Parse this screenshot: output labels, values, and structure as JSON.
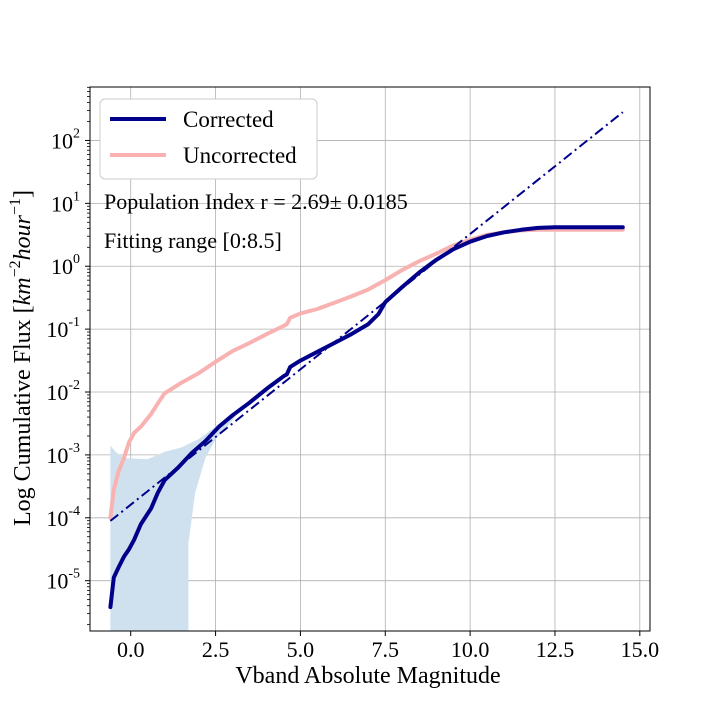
{
  "chart_data": {
    "type": "line",
    "xlabel": "Vband Absolute Magnitude",
    "ylabel": "Log Cumulative Flux [km^-2 hour^-1]",
    "ylabel_parts": {
      "prefix": "Log Cumulative Flux [",
      "km": "km",
      "exp1": "−2",
      "hour": "hour",
      "exp2": "−1",
      "suffix": "]"
    },
    "xlim": [
      -1.2,
      15.3
    ],
    "ylim_log10": [
      -5.8,
      2.85
    ],
    "y_scale": "log",
    "grid": true,
    "legend_position": "top-left",
    "x_ticks": [
      {
        "value": 0.0,
        "label": "0.0"
      },
      {
        "value": 2.5,
        "label": "2.5"
      },
      {
        "value": 5.0,
        "label": "5.0"
      },
      {
        "value": 7.5,
        "label": "7.5"
      },
      {
        "value": 10.0,
        "label": "10.0"
      },
      {
        "value": 12.5,
        "label": "12.5"
      },
      {
        "value": 15.0,
        "label": "15.0"
      }
    ],
    "y_ticks": [
      {
        "exp": -5,
        "base": "10",
        "sup": "-5"
      },
      {
        "exp": -4,
        "base": "10",
        "sup": "-4"
      },
      {
        "exp": -3,
        "base": "10",
        "sup": "-3"
      },
      {
        "exp": -2,
        "base": "10",
        "sup": "-2"
      },
      {
        "exp": -1,
        "base": "10",
        "sup": "-1"
      },
      {
        "exp": 0,
        "base": "10",
        "sup": "0"
      },
      {
        "exp": 1,
        "base": "10",
        "sup": "1"
      },
      {
        "exp": 2,
        "base": "10",
        "sup": "2"
      }
    ],
    "annotations": [
      "Population Index r = 2.69± 0.0185",
      "Fitting range [0:8.5]"
    ],
    "series": [
      {
        "name": "Corrected",
        "color": "#00008b",
        "style": "solid",
        "points": [
          [
            -0.6,
            -5.42
          ],
          [
            -0.5,
            -4.95
          ],
          [
            -0.35,
            -4.78
          ],
          [
            -0.2,
            -4.62
          ],
          [
            -0.05,
            -4.5
          ],
          [
            0.1,
            -4.35
          ],
          [
            0.3,
            -4.1
          ],
          [
            0.6,
            -3.85
          ],
          [
            0.8,
            -3.6
          ],
          [
            1.0,
            -3.4
          ],
          [
            1.4,
            -3.2
          ],
          [
            1.8,
            -2.97
          ],
          [
            2.2,
            -2.78
          ],
          [
            2.6,
            -2.55
          ],
          [
            3.0,
            -2.37
          ],
          [
            3.5,
            -2.17
          ],
          [
            4.0,
            -1.95
          ],
          [
            4.5,
            -1.75
          ],
          [
            4.6,
            -1.72
          ],
          [
            4.7,
            -1.6
          ],
          [
            5.0,
            -1.5
          ],
          [
            5.5,
            -1.36
          ],
          [
            6.0,
            -1.22
          ],
          [
            6.5,
            -1.08
          ],
          [
            7.0,
            -0.92
          ],
          [
            7.3,
            -0.76
          ],
          [
            7.5,
            -0.57
          ],
          [
            8.0,
            -0.33
          ],
          [
            8.5,
            -0.1
          ],
          [
            9.0,
            0.1
          ],
          [
            9.5,
            0.27
          ],
          [
            10.0,
            0.39
          ],
          [
            10.5,
            0.48
          ],
          [
            11.0,
            0.54
          ],
          [
            11.5,
            0.58
          ],
          [
            12.0,
            0.61
          ],
          [
            12.5,
            0.62
          ],
          [
            13.0,
            0.62
          ],
          [
            14.5,
            0.62
          ]
        ]
      },
      {
        "name": "Uncorrected",
        "color": "#f9b2b2",
        "style": "solid",
        "points": [
          [
            -0.6,
            -4.0
          ],
          [
            -0.5,
            -3.55
          ],
          [
            -0.35,
            -3.25
          ],
          [
            -0.2,
            -3.05
          ],
          [
            -0.05,
            -2.8
          ],
          [
            0.1,
            -2.65
          ],
          [
            0.3,
            -2.55
          ],
          [
            0.6,
            -2.35
          ],
          [
            0.8,
            -2.18
          ],
          [
            1.0,
            -2.02
          ],
          [
            1.5,
            -1.85
          ],
          [
            2.0,
            -1.7
          ],
          [
            2.5,
            -1.52
          ],
          [
            3.0,
            -1.35
          ],
          [
            3.5,
            -1.22
          ],
          [
            4.0,
            -1.08
          ],
          [
            4.5,
            -0.95
          ],
          [
            4.6,
            -0.92
          ],
          [
            4.7,
            -0.82
          ],
          [
            5.0,
            -0.75
          ],
          [
            5.5,
            -0.68
          ],
          [
            6.0,
            -0.58
          ],
          [
            6.5,
            -0.48
          ],
          [
            7.0,
            -0.37
          ],
          [
            7.5,
            -0.22
          ],
          [
            8.0,
            -0.06
          ],
          [
            8.5,
            0.08
          ],
          [
            9.0,
            0.2
          ],
          [
            9.5,
            0.33
          ],
          [
            10.0,
            0.42
          ],
          [
            10.5,
            0.5
          ],
          [
            11.0,
            0.54
          ],
          [
            11.5,
            0.57
          ],
          [
            12.0,
            0.58
          ],
          [
            12.5,
            0.58
          ],
          [
            13.0,
            0.58
          ],
          [
            14.5,
            0.58
          ]
        ]
      },
      {
        "name": "",
        "color": "#00008b",
        "style": "dash-dot",
        "points": [
          [
            -0.6,
            -4.05
          ],
          [
            14.5,
            2.45
          ]
        ]
      }
    ],
    "confidence_band": {
      "color": "#cfe1ee",
      "upper": [
        [
          -0.6,
          -2.85
        ],
        [
          -0.45,
          -2.95
        ],
        [
          -0.2,
          -3.05
        ],
        [
          0.5,
          -3.07
        ],
        [
          1.0,
          -2.95
        ],
        [
          1.5,
          -2.88
        ],
        [
          2.0,
          -2.75
        ],
        [
          2.5,
          -2.55
        ],
        [
          3.0,
          -2.35
        ],
        [
          3.3,
          -2.2
        ]
      ],
      "lower": [
        [
          3.3,
          -2.2
        ],
        [
          3.0,
          -2.45
        ],
        [
          2.5,
          -2.75
        ],
        [
          2.2,
          -3.05
        ],
        [
          1.9,
          -3.6
        ],
        [
          1.7,
          -4.4
        ],
        [
          1.7,
          -5.8
        ],
        [
          -0.6,
          -5.8
        ]
      ]
    }
  }
}
